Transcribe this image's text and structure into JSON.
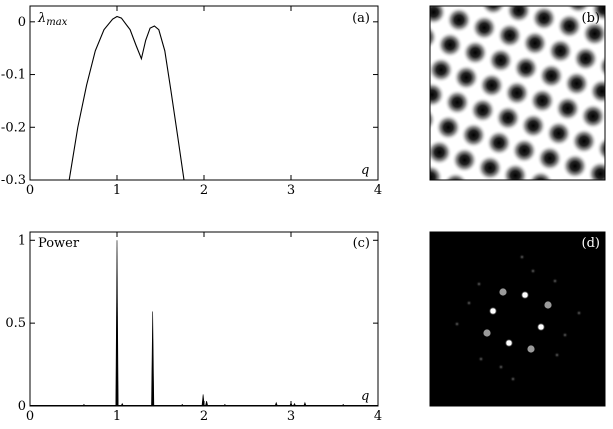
{
  "panels": {
    "a": {
      "label": "(a)"
    },
    "b": {
      "label": "(b)"
    },
    "c": {
      "label": "(c)"
    },
    "d": {
      "label": "(d)"
    }
  },
  "chart_data": [
    {
      "type": "line",
      "panel": "(a)",
      "ylabel": "λmax",
      "xlabel": "q",
      "xlim": [
        0,
        4
      ],
      "ylim": [
        -0.3,
        0.03
      ],
      "x_ticks": [
        "0",
        "1",
        "2",
        "3",
        "4"
      ],
      "y_ticks": [
        "0",
        "-0.1",
        "-0.2",
        "-0.3"
      ],
      "series": [
        {
          "x": [
            0.45,
            0.55,
            0.65,
            0.75,
            0.85,
            0.95,
            1.0,
            1.05,
            1.15,
            1.22,
            1.28,
            1.33,
            1.38,
            1.43,
            1.48,
            1.55,
            1.62,
            1.7,
            1.77
          ],
          "values": [
            -0.3,
            -0.2,
            -0.12,
            -0.055,
            -0.015,
            0.005,
            0.01,
            0.007,
            -0.015,
            -0.045,
            -0.07,
            -0.035,
            -0.012,
            -0.008,
            -0.015,
            -0.055,
            -0.13,
            -0.22,
            -0.3
          ]
        }
      ],
      "grid": false
    },
    {
      "type": "line",
      "panel": "(c)",
      "ylabel": "Power",
      "xlabel": "q",
      "xlim": [
        0,
        4
      ],
      "ylim": [
        0,
        1.05
      ],
      "x_ticks": [
        "0",
        "1",
        "2",
        "3",
        "4"
      ],
      "y_ticks": [
        "0",
        "0.5",
        "1"
      ],
      "peaks": [
        {
          "x": 0.62,
          "value": 0.01
        },
        {
          "x": 1.0,
          "value": 1.0
        },
        {
          "x": 1.06,
          "value": 0.015
        },
        {
          "x": 1.41,
          "value": 0.57
        },
        {
          "x": 1.75,
          "value": 0.01
        },
        {
          "x": 1.99,
          "value": 0.07
        },
        {
          "x": 2.03,
          "value": 0.03
        },
        {
          "x": 2.24,
          "value": 0.01
        },
        {
          "x": 2.83,
          "value": 0.02
        },
        {
          "x": 3.0,
          "value": 0.02
        },
        {
          "x": 3.04,
          "value": 0.015
        },
        {
          "x": 3.16,
          "value": 0.02
        },
        {
          "x": 3.6,
          "value": 0.01
        }
      ],
      "grid": false
    }
  ]
}
